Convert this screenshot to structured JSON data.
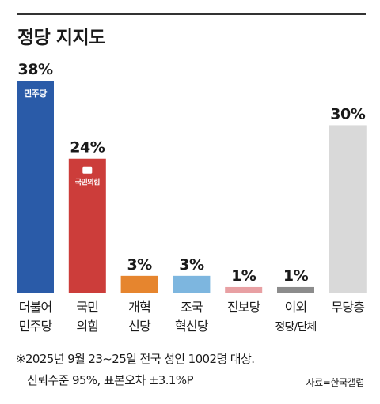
{
  "title": "정당 지지도",
  "chart_data": {
    "type": "bar",
    "categories": [
      [
        "더불어",
        "민주당"
      ],
      [
        "국민",
        "의힘"
      ],
      [
        "개혁",
        "신당"
      ],
      [
        "조국",
        "혁신당"
      ],
      [
        "진보당"
      ],
      [
        "이외",
        "정당/단체"
      ],
      [
        "무당층"
      ]
    ],
    "values": [
      38,
      24,
      3,
      3,
      1,
      1,
      30
    ],
    "value_labels": [
      "38%",
      "24%",
      "3%",
      "3%",
      "1%",
      "1%",
      "30%"
    ],
    "colors": [
      "#2a5ba8",
      "#cc3d3a",
      "#e6852e",
      "#7db6df",
      "#e8a0a3",
      "#8c8c8c",
      "#d9d9d9"
    ],
    "logos": [
      "민주당",
      "국민의힘",
      "",
      "",
      "",
      "",
      ""
    ],
    "ylim": [
      0,
      38
    ],
    "grid": false,
    "xlabel": "",
    "ylabel": ""
  },
  "footnote": {
    "line1": "※2025년 9월 23~25일 전국 성인 1002명 대상.",
    "line2": "신뢰수준 95%, 표본오차 ±3.1%P"
  },
  "source": "자료=한국갤럽"
}
